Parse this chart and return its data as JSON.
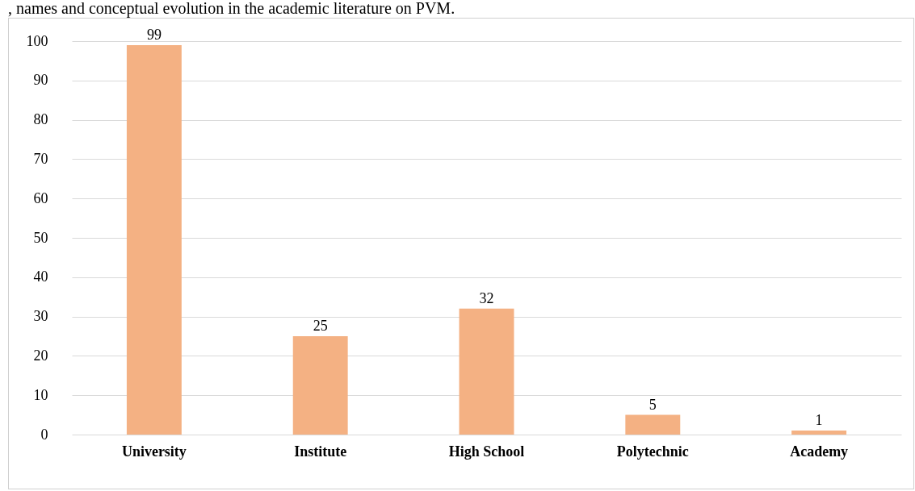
{
  "chart_data": {
    "type": "bar",
    "annotations": [
      ", names and conceptual evolution in the academic literature on PVM."
    ],
    "categories": [
      "University",
      "Institute",
      "High School",
      "Polytechnic",
      "Academy"
    ],
    "values": [
      99,
      25,
      32,
      5,
      1
    ],
    "color": "#f4b183",
    "ylim": [
      0,
      100
    ],
    "yticks": [
      0,
      10,
      20,
      30,
      40,
      50,
      60,
      70,
      80,
      90,
      100
    ],
    "grid": true,
    "data_labels": true
  }
}
